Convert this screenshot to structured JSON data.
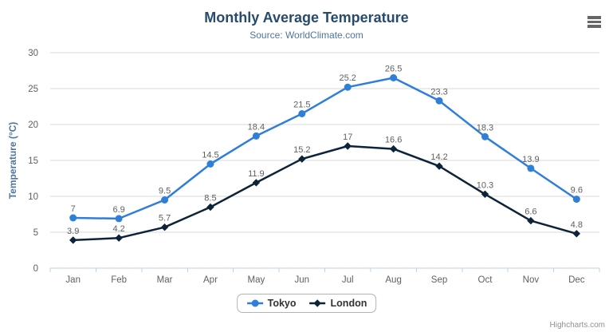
{
  "chart_data": {
    "type": "line",
    "title": "Monthly Average Temperature",
    "subtitle": "Source: WorldClimate.com",
    "categories": [
      "Jan",
      "Feb",
      "Mar",
      "Apr",
      "May",
      "Jun",
      "Jul",
      "Aug",
      "Sep",
      "Oct",
      "Nov",
      "Dec"
    ],
    "xlabel": "",
    "ylabel": "Temperature (°C)",
    "ylim": [
      0,
      30
    ],
    "y_ticks": [
      0,
      5,
      10,
      15,
      20,
      25,
      30
    ],
    "grid": true,
    "legend_position": "bottom",
    "data_labels_shown": true,
    "series": [
      {
        "name": "Tokyo",
        "color": "#2f7ed8",
        "marker": "circle",
        "values": [
          7,
          6.9,
          9.5,
          14.5,
          18.4,
          21.5,
          25.2,
          26.5,
          23.3,
          18.3,
          13.9,
          9.6
        ]
      },
      {
        "name": "London",
        "color": "#0d233a",
        "marker": "diamond",
        "values": [
          3.9,
          4.2,
          5.7,
          8.5,
          11.9,
          15.2,
          17,
          16.6,
          14.2,
          10.3,
          6.6,
          4.8
        ]
      }
    ]
  },
  "colors": {
    "title": "#274b6d",
    "subtitle": "#4d759e",
    "axis_title": "#4d759e",
    "axis_labels": "#606060",
    "data_labels": "#606060",
    "gridline": "#d8d8d8",
    "axis_line": "#c0d0e0",
    "legend_border": "#b3b3b3",
    "legend_text": "#333333",
    "credits": "#909090",
    "menu_icon": "#666666",
    "background": "#ffffff"
  },
  "icons": {
    "context_menu": "hamburger-icon"
  },
  "credits": "Highcharts.com"
}
